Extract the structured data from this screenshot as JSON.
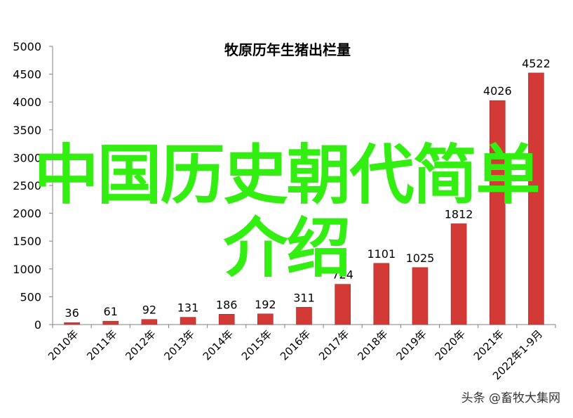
{
  "colors": {
    "bar": "#d33a36",
    "bar_edge": "#a82622",
    "axis": "#808080",
    "overlay": "#33ee11"
  },
  "overlay": {
    "line1": "中国历史朝代简单",
    "line2": "介绍"
  },
  "watermark": "头条 @畜牧大集网",
  "chart_data": {
    "type": "bar",
    "title": "牧原历年生猪出栏量",
    "xlabel": "",
    "ylabel": "",
    "ylim": [
      0,
      5000
    ],
    "yticks": [
      0,
      500,
      1000,
      1500,
      2000,
      2500,
      3000,
      3500,
      4000,
      4500,
      5000
    ],
    "grid": false,
    "categories": [
      "2010年",
      "2011年",
      "2012年",
      "2013年",
      "2014年",
      "2015年",
      "2016年",
      "2017年",
      "2018年",
      "2019年",
      "2020年",
      "2021年",
      "2022年1-9月"
    ],
    "values": [
      36,
      61,
      92,
      131,
      186,
      192,
      311,
      724,
      1101,
      1025,
      1812,
      4026,
      4522
    ],
    "labels": [
      "36",
      "61",
      "92",
      "131",
      "186",
      "192",
      "311",
      "724",
      "1101",
      "1025",
      "1812",
      "4026",
      "4522"
    ]
  }
}
